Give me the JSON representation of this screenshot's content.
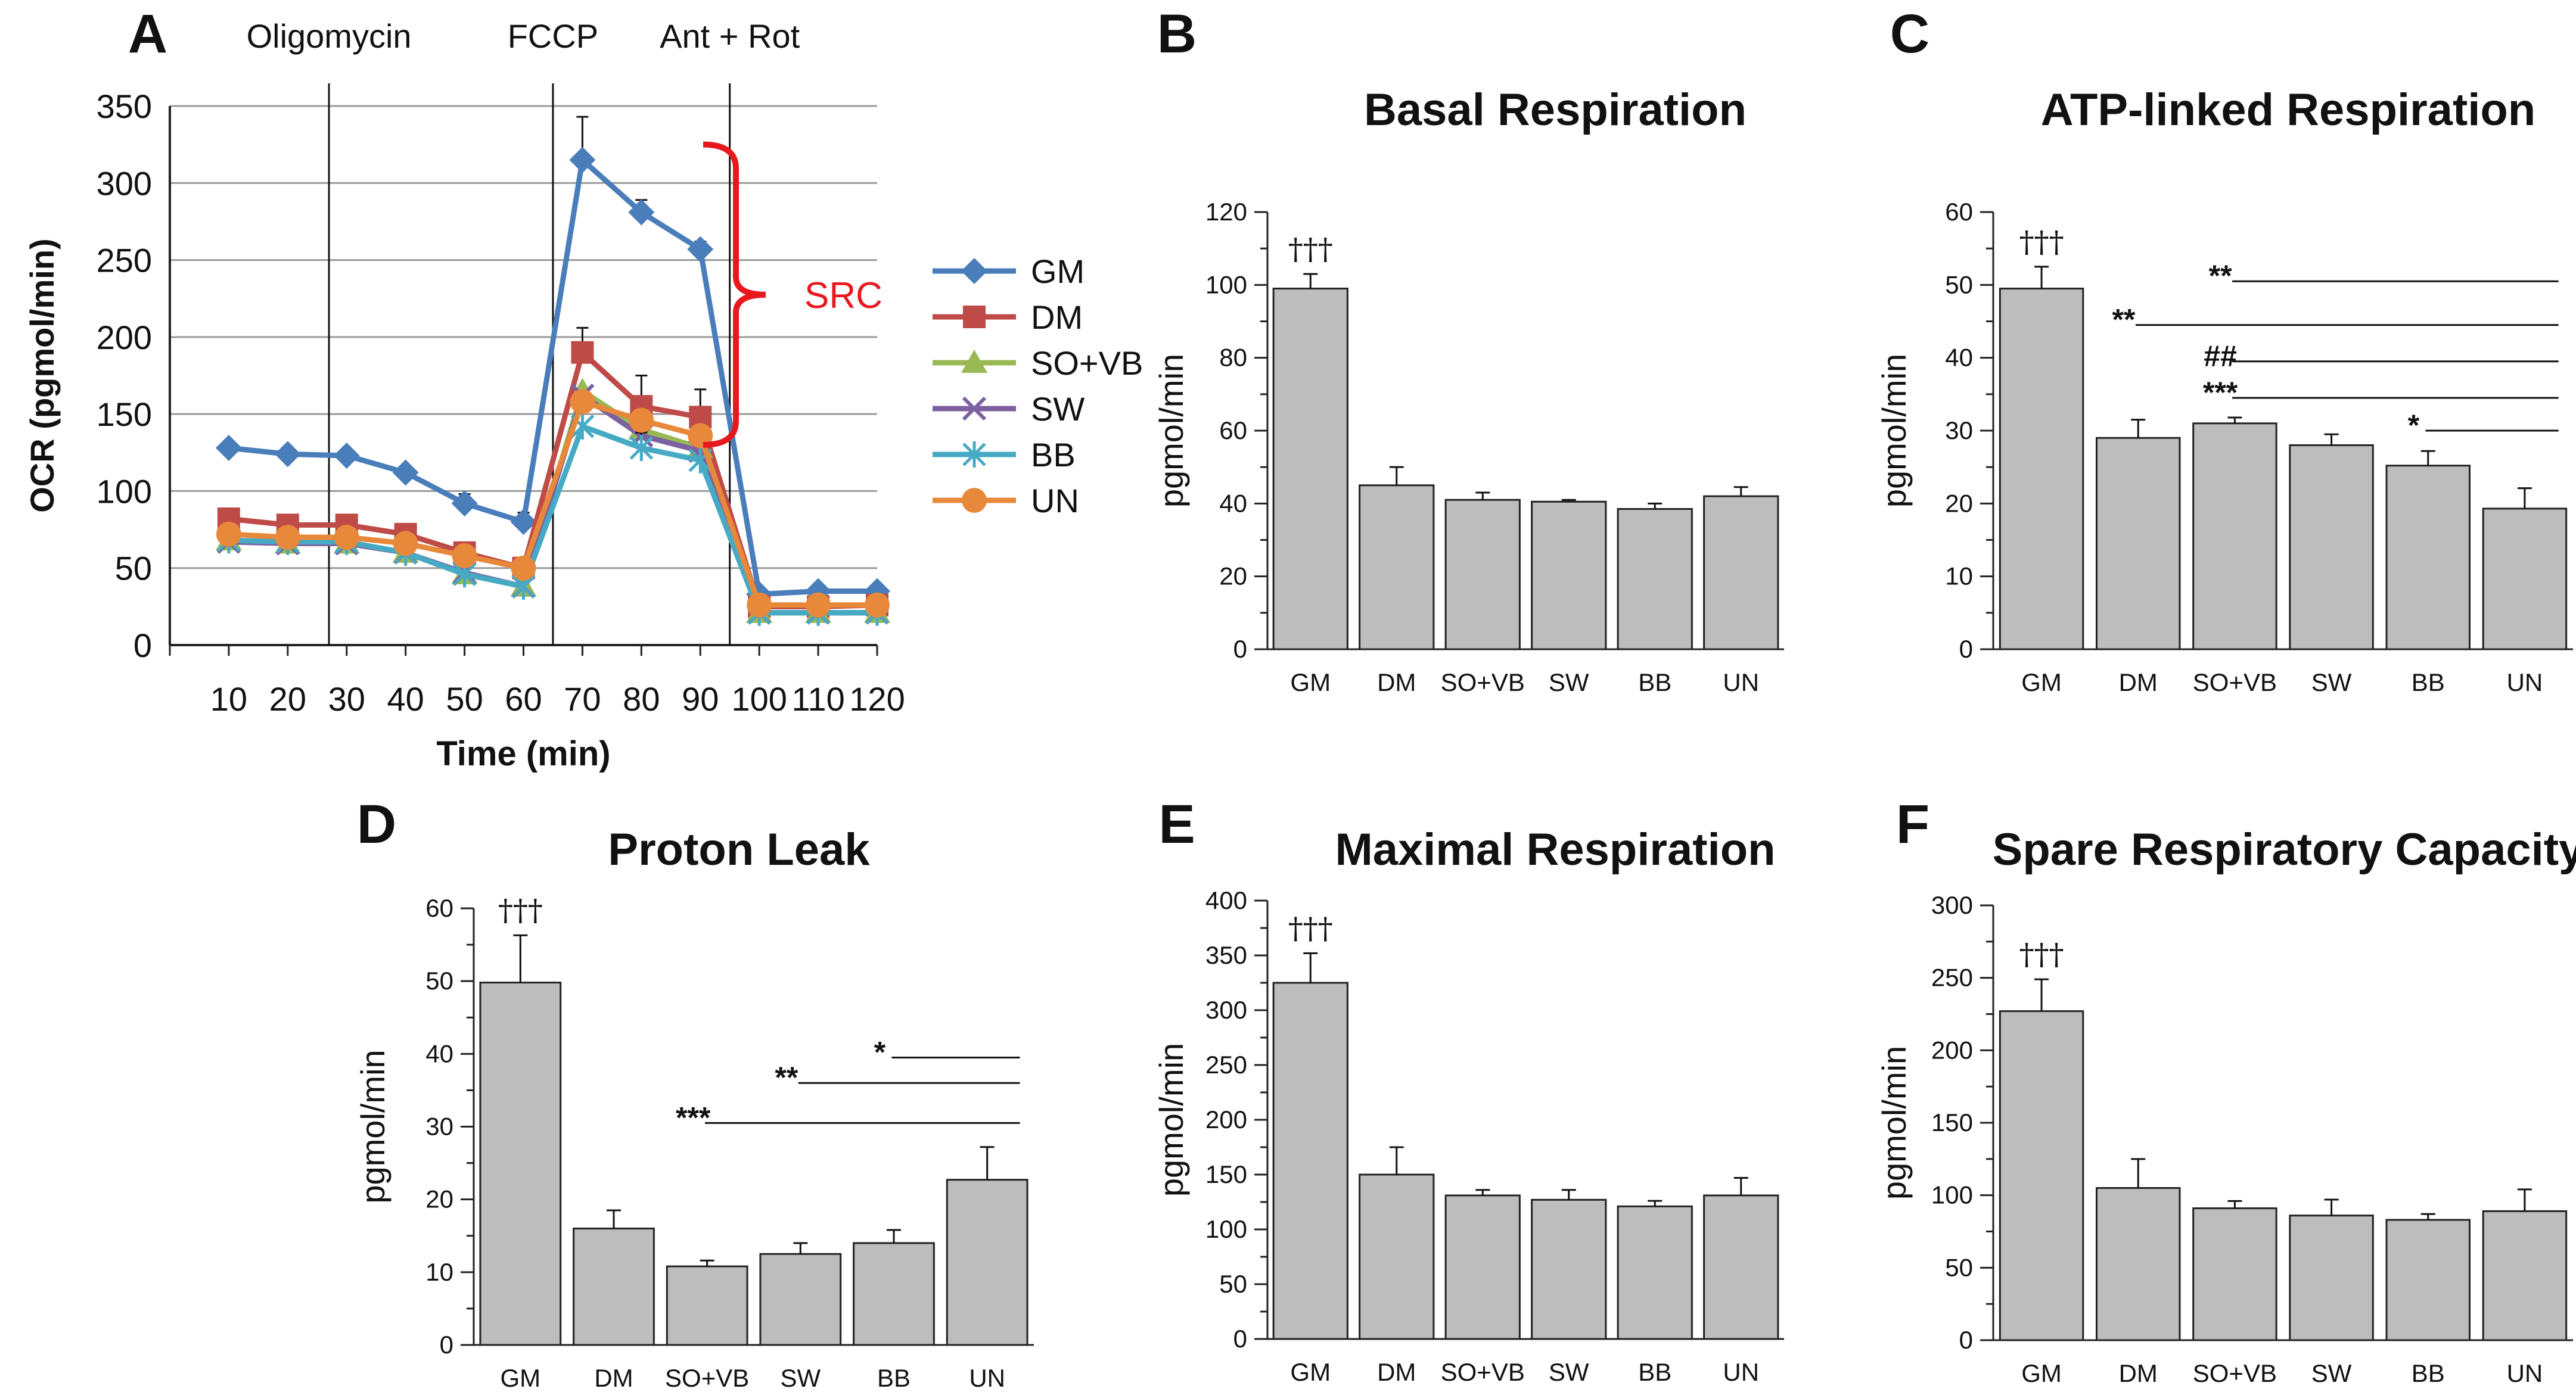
{
  "figure": {
    "colors": {
      "bar_fill": "#bdbdbd",
      "bar_stroke": "#222222",
      "grid": "#9a9a9a",
      "axis": "#222222",
      "src": "#e8191e"
    }
  },
  "chart_data": [
    {
      "panel": "A",
      "type": "line",
      "title": "",
      "xlabel": "Time (min)",
      "ylabel": "OCR (pgmol/min)",
      "xlim": [
        0,
        120
      ],
      "ylim": [
        0,
        350
      ],
      "yticks": [
        0,
        50,
        100,
        150,
        200,
        250,
        300,
        350
      ],
      "x": [
        10,
        20,
        30,
        40,
        50,
        60,
        70,
        80,
        90,
        100,
        110,
        120
      ],
      "x_tick_labels": [
        "10",
        "20",
        "30",
        "40",
        "50",
        "60",
        "70",
        "80",
        "90",
        "100",
        "110",
        "120"
      ],
      "grid": true,
      "vlines": [
        {
          "x": 30,
          "label": "Oligomycin"
        },
        {
          "x": 60,
          "label": "FCCP"
        },
        {
          "x": 90,
          "label": "Ant + Rot"
        }
      ],
      "annotation": {
        "text": "SRC",
        "from": 130,
        "to": 325
      },
      "legend_position": "right",
      "series": [
        {
          "name": "GM",
          "color": "#4a7ebb",
          "marker": "diamond",
          "values": [
            128,
            124,
            123,
            112,
            92,
            80,
            315,
            281,
            257,
            33,
            35,
            35
          ],
          "errors": [
            0,
            0,
            0,
            0,
            6,
            6,
            28,
            8,
            5,
            0,
            0,
            0
          ]
        },
        {
          "name": "DM",
          "color": "#be4b48",
          "marker": "square",
          "values": [
            82,
            78,
            78,
            72,
            60,
            50,
            190,
            155,
            148,
            25,
            25,
            26
          ],
          "errors": [
            6,
            5,
            6,
            5,
            5,
            4,
            16,
            20,
            18,
            0,
            0,
            0
          ]
        },
        {
          "name": "SO+VB",
          "color": "#98b954",
          "marker": "triangle",
          "values": [
            68,
            66,
            66,
            60,
            46,
            38,
            165,
            140,
            128,
            21,
            21,
            21
          ],
          "errors": [
            0,
            0,
            0,
            0,
            0,
            0,
            0,
            0,
            0,
            0,
            0,
            0
          ]
        },
        {
          "name": "SW",
          "color": "#7d60a0",
          "marker": "x",
          "values": [
            67,
            66,
            66,
            60,
            47,
            38,
            162,
            136,
            126,
            21,
            21,
            21
          ],
          "errors": [
            0,
            0,
            0,
            0,
            0,
            0,
            0,
            0,
            0,
            0,
            0,
            0
          ]
        },
        {
          "name": "BB",
          "color": "#46aac5",
          "marker": "asterisk",
          "values": [
            68,
            67,
            67,
            60,
            46,
            38,
            142,
            128,
            120,
            21,
            21,
            21
          ],
          "errors": [
            0,
            0,
            0,
            0,
            0,
            0,
            0,
            10,
            10,
            0,
            0,
            0
          ]
        },
        {
          "name": "UN",
          "color": "#e8883a",
          "marker": "circle",
          "values": [
            72,
            70,
            70,
            66,
            58,
            50,
            158,
            146,
            136,
            26,
            26,
            26
          ],
          "errors": [
            0,
            0,
            0,
            0,
            0,
            0,
            0,
            0,
            0,
            0,
            0,
            0
          ]
        }
      ]
    },
    {
      "panel": "B",
      "type": "bar",
      "title": "Basal Respiration",
      "ylabel": "pgmol/min",
      "ylim": [
        0,
        120
      ],
      "yticks": [
        0,
        20,
        40,
        60,
        80,
        100,
        120
      ],
      "categories": [
        "GM",
        "DM",
        "SO+VB",
        "SW",
        "BB",
        "UN"
      ],
      "values": [
        99,
        45,
        41,
        40.5,
        38.5,
        42
      ],
      "errors": [
        4,
        5,
        2,
        0.5,
        1.5,
        2.5
      ],
      "marker_label": {
        "text": "†††",
        "category": 0
      },
      "brackets": []
    },
    {
      "panel": "C",
      "type": "bar",
      "title": "ATP-linked Respiration",
      "ylabel": "pgmol/min",
      "ylim": [
        0,
        60
      ],
      "yticks": [
        0,
        10,
        20,
        30,
        40,
        50,
        60
      ],
      "categories": [
        "GM",
        "DM",
        "SO+VB",
        "SW",
        "BB",
        "UN"
      ],
      "values": [
        49.5,
        29,
        31,
        28,
        25.2,
        19.3
      ],
      "errors": [
        3,
        2.5,
        0.8,
        1.5,
        2,
        2.8
      ],
      "marker_label": {
        "text": "†††",
        "category": 0
      },
      "brackets": [
        {
          "label": "**",
          "from": 2,
          "to": 5,
          "y": 50.5
        },
        {
          "label": "**",
          "from": 1,
          "to": 5,
          "y": 44.5
        },
        {
          "label": "##",
          "from": 2,
          "to": 5,
          "y": 39.5
        },
        {
          "label": "***",
          "from": 2,
          "to": 5,
          "y": 34.5
        },
        {
          "label": "*",
          "from": 4,
          "to": 5,
          "y": 30
        }
      ]
    },
    {
      "panel": "D",
      "type": "bar",
      "title": "Proton Leak",
      "ylabel": "pgmol/min",
      "ylim": [
        0,
        60
      ],
      "yticks": [
        0,
        10,
        20,
        30,
        40,
        50,
        60
      ],
      "categories": [
        "GM",
        "DM",
        "SO+VB",
        "SW",
        "BB",
        "UN"
      ],
      "values": [
        49.8,
        16,
        10.8,
        12.5,
        14,
        22.7
      ],
      "errors": [
        6.5,
        2.5,
        0.8,
        1.5,
        1.8,
        4.5
      ],
      "marker_label": {
        "text": "†††",
        "category": 0
      },
      "brackets": [
        {
          "label": "*",
          "from": 4,
          "to": 5,
          "y": 39.5
        },
        {
          "label": "**",
          "from": 3,
          "to": 5,
          "y": 36
        },
        {
          "label": "***",
          "from": 2,
          "to": 5,
          "y": 30.5
        }
      ]
    },
    {
      "panel": "E",
      "type": "bar",
      "title": "Maximal Respiration",
      "ylabel": "pgmol/min",
      "ylim": [
        0,
        400
      ],
      "yticks": [
        0,
        50,
        100,
        150,
        200,
        250,
        300,
        350,
        400
      ],
      "categories": [
        "GM",
        "DM",
        "SO+VB",
        "SW",
        "BB",
        "UN"
      ],
      "values": [
        325,
        150,
        131,
        127,
        121,
        131
      ],
      "errors": [
        27,
        25,
        5,
        9,
        5,
        16
      ],
      "marker_label": {
        "text": "†††",
        "category": 0
      },
      "brackets": []
    },
    {
      "panel": "F",
      "type": "bar",
      "title": "Spare Respiratory Capacity",
      "ylabel": "pgmol/min",
      "ylim": [
        0,
        300
      ],
      "yticks": [
        0,
        50,
        100,
        150,
        200,
        250,
        300
      ],
      "categories": [
        "GM",
        "DM",
        "SO+VB",
        "SW",
        "BB",
        "UN"
      ],
      "values": [
        227,
        105,
        91,
        86,
        83,
        89
      ],
      "errors": [
        22,
        20,
        5,
        11,
        4,
        15
      ],
      "marker_label": {
        "text": "†††",
        "category": 0
      },
      "brackets": []
    }
  ]
}
